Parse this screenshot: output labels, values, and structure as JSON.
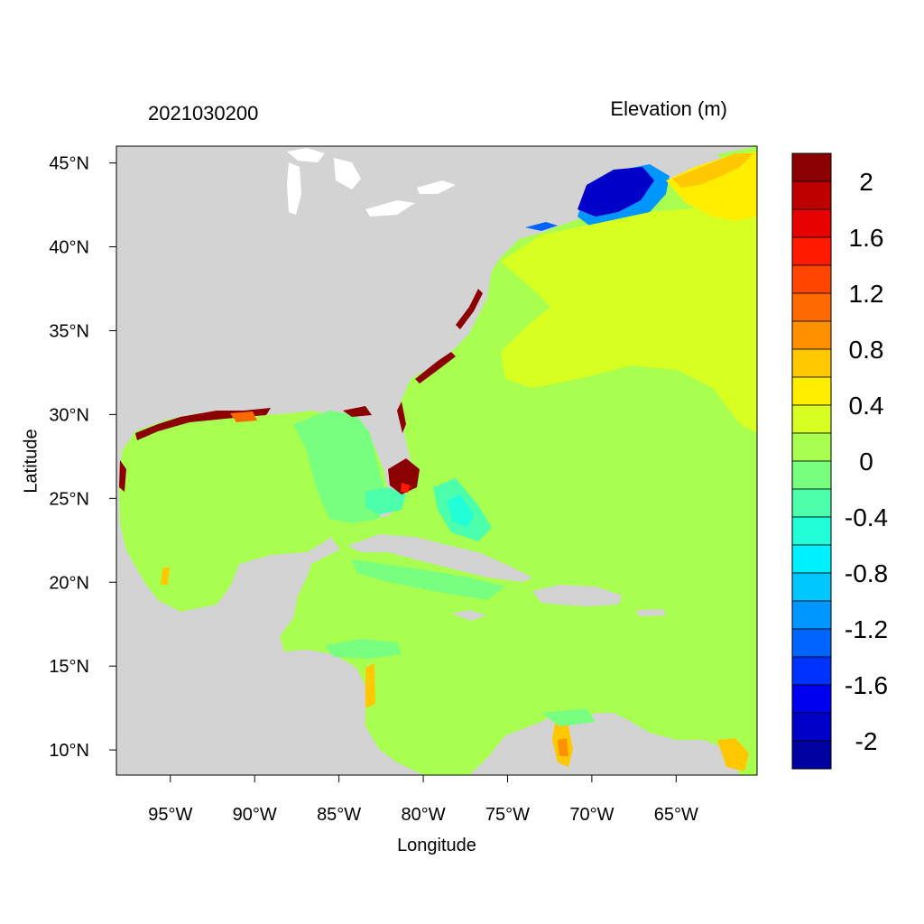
{
  "figure": {
    "title_left": "2021030200",
    "title_right": "Elevation (m)",
    "x_axis_label": "Longitude",
    "y_axis_label": "Latitude"
  },
  "map": {
    "region_extent": {
      "lon_min": -98.2,
      "lon_max": -60.2,
      "lat_min": 8.5,
      "lat_max": 46.0
    },
    "x_ticks": [
      {
        "lon": -95,
        "label": "95°W"
      },
      {
        "lon": -90,
        "label": "90°W"
      },
      {
        "lon": -85,
        "label": "85°W"
      },
      {
        "lon": -80,
        "label": "80°W"
      },
      {
        "lon": -75,
        "label": "75°W"
      },
      {
        "lon": -70,
        "label": "70°W"
      },
      {
        "lon": -65,
        "label": "65°W"
      }
    ],
    "y_ticks": [
      {
        "lat": 45,
        "label": "45°N"
      },
      {
        "lat": 40,
        "label": "40°N"
      },
      {
        "lat": 35,
        "label": "35°N"
      },
      {
        "lat": 30,
        "label": "30°N"
      },
      {
        "lat": 25,
        "label": "25°N"
      },
      {
        "lat": 20,
        "label": "20°N"
      },
      {
        "lat": 15,
        "label": "15°N"
      },
      {
        "lat": 10,
        "label": "10°N"
      }
    ],
    "land_color": "#d3d3d3",
    "ocean_base_color": "#a8ff50"
  },
  "colorbar": {
    "levels": [
      {
        "value": 2.2,
        "color": "#8b0000"
      },
      {
        "value": 2.0,
        "color": "#bf0000"
      },
      {
        "value": 1.8,
        "color": "#e60000"
      },
      {
        "value": 1.6,
        "color": "#ff1a00"
      },
      {
        "value": 1.4,
        "color": "#ff4500"
      },
      {
        "value": 1.2,
        "color": "#ff6a00"
      },
      {
        "value": 1.0,
        "color": "#ff9000"
      },
      {
        "value": 0.8,
        "color": "#ffc800"
      },
      {
        "value": 0.6,
        "color": "#ffee00"
      },
      {
        "value": 0.4,
        "color": "#d8ff22"
      },
      {
        "value": 0.2,
        "color": "#a8ff50"
      },
      {
        "value": 0.0,
        "color": "#78ff80"
      },
      {
        "value": -0.2,
        "color": "#4cffaa"
      },
      {
        "value": -0.4,
        "color": "#20ffd8"
      },
      {
        "value": -0.6,
        "color": "#00f0ff"
      },
      {
        "value": -0.8,
        "color": "#00c8ff"
      },
      {
        "value": -1.0,
        "color": "#0096ff"
      },
      {
        "value": -1.2,
        "color": "#0064ff"
      },
      {
        "value": -1.4,
        "color": "#0032ff"
      },
      {
        "value": -1.6,
        "color": "#0000f0"
      },
      {
        "value": -1.8,
        "color": "#0000c8"
      },
      {
        "value": -2.0,
        "color": "#0000a0"
      }
    ],
    "labels": [
      "2",
      "1.6",
      "1.2",
      "0.8",
      "0.4",
      "0",
      "-0.4",
      "-0.8",
      "-1.2",
      "-1.6",
      "-2"
    ]
  }
}
